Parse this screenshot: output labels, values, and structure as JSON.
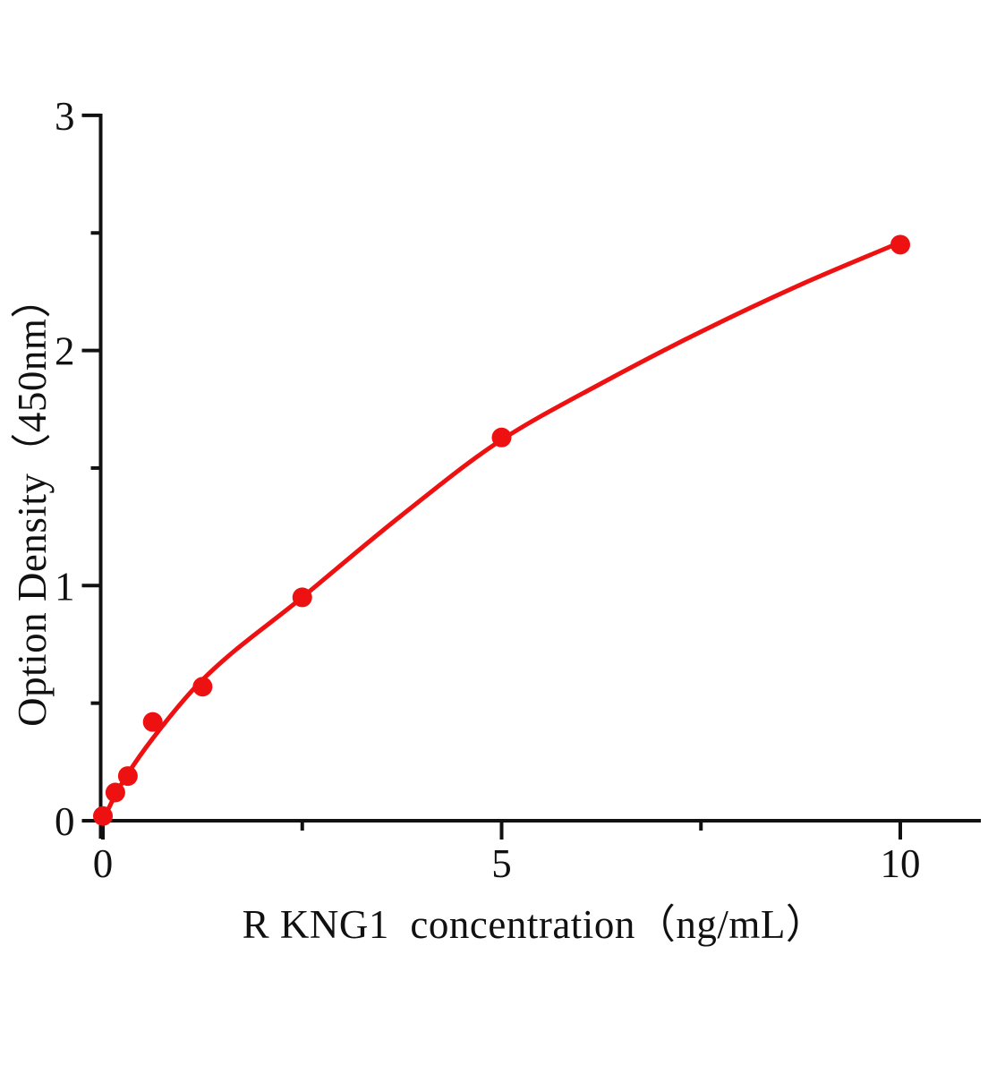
{
  "figure": {
    "background": "#ffffff",
    "curve_color": "#ee1111",
    "point_color": "#ee1111",
    "axis_color": "#111111",
    "text_color": "#111111"
  },
  "axes": {
    "x": {
      "label": "R KNG1  concentration（ng/mL）",
      "major_ticks": [
        {
          "value": 0,
          "label": "0"
        },
        {
          "value": 5,
          "label": "5"
        },
        {
          "value": 10,
          "label": "10"
        }
      ],
      "minor_ticks": [
        2.5,
        7.5
      ],
      "range": [
        0,
        11
      ]
    },
    "y": {
      "label": "Option Density（450nm）",
      "major_ticks": [
        {
          "value": 0,
          "label": "0"
        },
        {
          "value": 1,
          "label": "1"
        },
        {
          "value": 2,
          "label": "2"
        },
        {
          "value": 3,
          "label": "3"
        }
      ],
      "minor_ticks": [
        0.5,
        1.5,
        2.5
      ],
      "range": [
        0,
        3
      ]
    }
  },
  "chart_data": {
    "type": "scatter",
    "title": "",
    "xlabel": "R KNG1  concentration（ng/mL）",
    "ylabel": "Option Density（450nm）",
    "xlim": [
      0,
      11
    ],
    "ylim": [
      0,
      3
    ],
    "grid": false,
    "legend": false,
    "series": [
      {
        "name": "standard-points",
        "type": "scatter",
        "color": "#ee1111",
        "marker_radius_px": 11,
        "points": [
          [
            0,
            0.02
          ],
          [
            0.156,
            0.12
          ],
          [
            0.313,
            0.19
          ],
          [
            0.625,
            0.42
          ],
          [
            1.25,
            0.57
          ],
          [
            2.5,
            0.95
          ],
          [
            5,
            1.63
          ],
          [
            10,
            2.45
          ]
        ]
      },
      {
        "name": "fitted-curve",
        "type": "line",
        "color": "#ee1111",
        "stroke_width_px": 5,
        "points": [
          [
            0,
            0.0
          ],
          [
            0.156,
            0.11
          ],
          [
            0.313,
            0.2
          ],
          [
            0.625,
            0.35
          ],
          [
            1.25,
            0.6
          ],
          [
            2.5,
            0.95
          ],
          [
            3.75,
            1.3
          ],
          [
            5,
            1.62
          ],
          [
            6.25,
            1.86
          ],
          [
            7.5,
            2.08
          ],
          [
            8.75,
            2.28
          ],
          [
            10,
            2.46
          ]
        ]
      }
    ]
  }
}
